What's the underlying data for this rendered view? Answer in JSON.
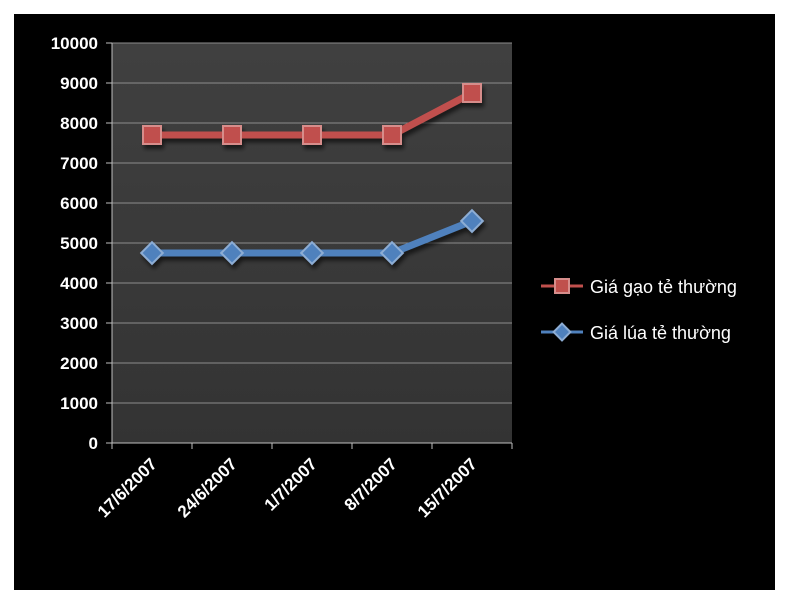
{
  "chart_data": {
    "type": "line",
    "title": "",
    "xlabel": "",
    "ylabel": "",
    "categories": [
      "17/6/2007",
      "24/6/2007",
      "1/7/2007",
      "8/7/2007",
      "15/7/2007"
    ],
    "ylim": [
      0,
      10000
    ],
    "yticks": [
      0,
      1000,
      2000,
      3000,
      4000,
      5000,
      6000,
      7000,
      8000,
      9000,
      10000
    ],
    "grid": true,
    "legend_position": "right",
    "series": [
      {
        "name": "Giá gạo tẻ thường",
        "values": [
          7700,
          7700,
          7700,
          7700,
          8750
        ],
        "color": "#c0504d",
        "marker": "square"
      },
      {
        "name": "Giá lúa tẻ thường",
        "values": [
          4750,
          4750,
          4750,
          4750,
          5550
        ],
        "color": "#4f81bd",
        "marker": "diamond"
      }
    ]
  }
}
